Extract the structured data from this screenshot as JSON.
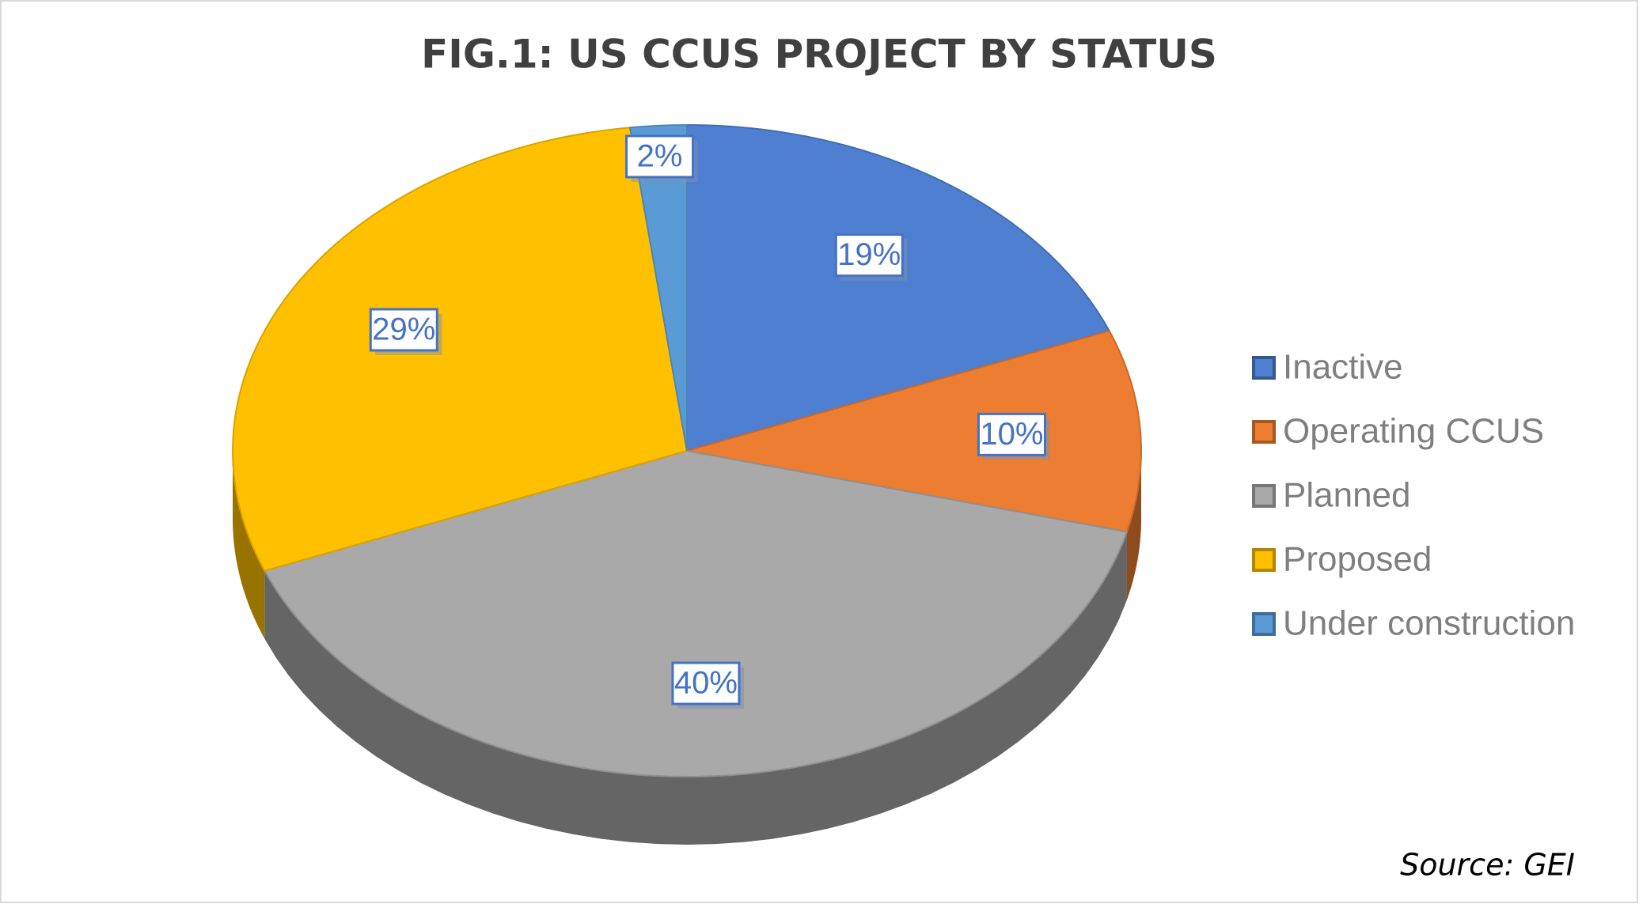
{
  "chart_data": {
    "type": "pie",
    "title": "FIG.1: US CCUS PROJECT BY STATUS",
    "categories": [
      "Inactive",
      "Operating CCUS",
      "Planned",
      "Proposed",
      "Under construction"
    ],
    "values": [
      19,
      10,
      40,
      29,
      2
    ],
    "value_labels": [
      "19%",
      "10%",
      "40%",
      "29%",
      "2%"
    ],
    "colors": [
      "#4f7fd0",
      "#ed7d31",
      "#a9a9a9",
      "#ffc000",
      "#5b9bd5"
    ],
    "legend": "right",
    "source": "Source: GEI"
  }
}
